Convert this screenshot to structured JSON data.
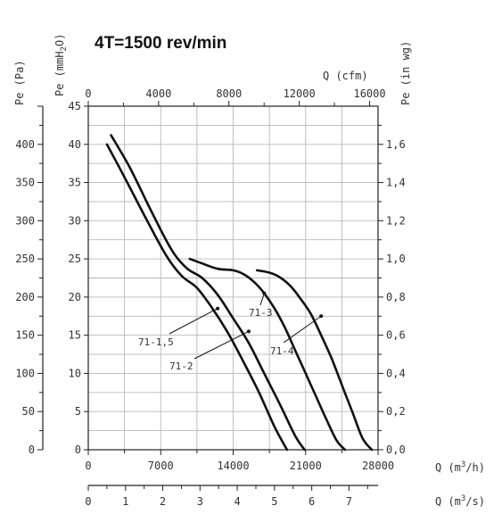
{
  "chart_data": {
    "type": "line",
    "title": "4T=1500 rev/min",
    "axes": {
      "left_pa": {
        "label": "Pe (Pa)",
        "range": [
          0,
          450
        ],
        "tick_labels": [
          "0",
          "50",
          "100",
          "150",
          "200",
          "250",
          "300",
          "350",
          "400"
        ]
      },
      "left_mmh2o": {
        "label": "Pe (mmH",
        "label_sub": "2",
        "label_end": "O)",
        "range": [
          0,
          45
        ],
        "tick_labels": [
          "0",
          "5",
          "10",
          "15",
          "20",
          "25",
          "30",
          "35",
          "40",
          "45"
        ]
      },
      "right_inwg": {
        "label": "Pe (in wg)",
        "range": [
          0,
          1.8
        ],
        "tick_labels": [
          "0,0",
          "0,2",
          "0,4",
          "0,6",
          "0,8",
          "1,0",
          "1,2",
          "1,4",
          "1,6"
        ]
      },
      "bottom_m3h": {
        "label": "Q (m",
        "label_sup": "3",
        "label_end": "/h)",
        "range": [
          0,
          28000
        ],
        "tick_labels": [
          "0",
          "7000",
          "14000",
          "21000",
          "28000"
        ]
      },
      "bottom_m3s": {
        "label": "Q (m",
        "label_sup": "3",
        "label_end": "/s)",
        "range": [
          0,
          7.78
        ],
        "tick_labels": [
          "0",
          "1",
          "2",
          "3",
          "4",
          "5",
          "6",
          "7"
        ]
      },
      "top_cfm": {
        "label": "Q (cfm)",
        "range": [
          0,
          16480
        ],
        "tick_labels": [
          "0",
          "4000",
          "8000",
          "12000",
          "16000"
        ]
      }
    },
    "grid": true,
    "series": [
      {
        "name": "71-1,5",
        "x_m3h": [
          1800,
          3500,
          5500,
          7500,
          9000,
          10500,
          12000,
          13500,
          15000,
          16500,
          18000,
          19200
        ],
        "y_pa": [
          400,
          357,
          305,
          255,
          228,
          212,
          185,
          153,
          115,
          75,
          30,
          0
        ]
      },
      {
        "name": "71-2",
        "x_m3h": [
          2200,
          4000,
          6000,
          8000,
          9500,
          11000,
          12500,
          14000,
          15500,
          17000,
          18500,
          20000,
          20900
        ],
        "y_pa": [
          412,
          370,
          315,
          263,
          238,
          225,
          203,
          172,
          140,
          100,
          60,
          18,
          0
        ]
      },
      {
        "name": "71-3",
        "x_m3h": [
          9800,
          11000,
          12500,
          14000,
          15000,
          16000,
          17000,
          18000,
          19000,
          20000,
          21000,
          22000,
          23000,
          24000,
          24800
        ],
        "y_pa": [
          250,
          244,
          237,
          235,
          230,
          220,
          205,
          185,
          160,
          130,
          100,
          70,
          40,
          12,
          0
        ]
      },
      {
        "name": "71-4",
        "x_m3h": [
          16300,
          17500,
          18500,
          19500,
          20500,
          21500,
          22500,
          23500,
          24500,
          25500,
          26500,
          27400
        ],
        "y_pa": [
          235,
          232,
          226,
          215,
          198,
          178,
          150,
          120,
          85,
          50,
          15,
          0
        ]
      }
    ],
    "annotations": [
      {
        "text": "71-1,5",
        "leader_x_m3h": 12500,
        "leader_y_pa": 185
      },
      {
        "text": "71-2",
        "leader_x_m3h": 15500,
        "leader_y_pa": 155
      },
      {
        "text": "71-3",
        "leader_x_m3h": 17000,
        "leader_y_pa": 205
      },
      {
        "text": "71-4",
        "leader_x_m3h": 22500,
        "leader_y_pa": 175
      }
    ]
  }
}
